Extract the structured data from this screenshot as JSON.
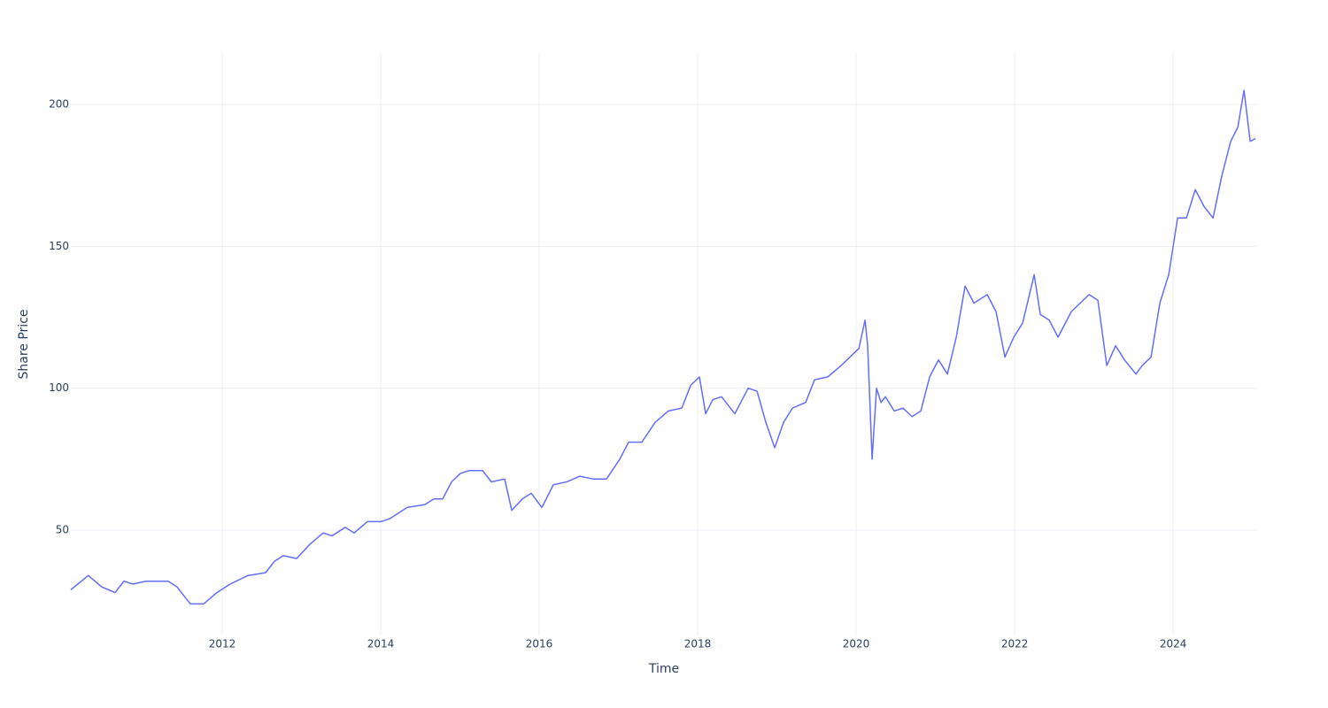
{
  "chart_data": {
    "type": "line",
    "xlabel": "Time",
    "ylabel": "Share Price",
    "xlim": [
      2010.09,
      2025.06
    ],
    "ylim": [
      12.9,
      218.1
    ],
    "xticks": [
      2012,
      2014,
      2016,
      2018,
      2020,
      2022,
      2024
    ],
    "yticks": [
      50,
      100,
      150,
      200
    ],
    "grid": true,
    "series": [
      {
        "color": "#636efa",
        "x": [
          2010.09,
          2010.31,
          2010.48,
          2010.648,
          2010.76,
          2010.872,
          2011.039,
          2011.318,
          2011.43,
          2011.598,
          2011.765,
          2011.933,
          2012.101,
          2012.324,
          2012.547,
          2012.659,
          2012.771,
          2012.939,
          2013.106,
          2013.274,
          2013.385,
          2013.553,
          2013.665,
          2013.832,
          2014.0,
          2014.112,
          2014.335,
          2014.559,
          2014.67,
          2014.782,
          2014.894,
          2015.006,
          2015.117,
          2015.285,
          2015.397,
          2015.564,
          2015.654,
          2015.788,
          2015.899,
          2016.034,
          2016.179,
          2016.346,
          2016.514,
          2016.682,
          2016.849,
          2017.017,
          2017.128,
          2017.296,
          2017.464,
          2017.631,
          2017.799,
          2017.911,
          2018.022,
          2018.101,
          2018.19,
          2018.302,
          2018.469,
          2018.637,
          2018.749,
          2018.86,
          2018.972,
          2019.084,
          2019.196,
          2019.363,
          2019.475,
          2019.642,
          2019.81,
          2019.922,
          2020.034,
          2020.112,
          2020.145,
          2020.201,
          2020.257,
          2020.313,
          2020.369,
          2020.48,
          2020.592,
          2020.704,
          2020.816,
          2020.927,
          2021.039,
          2021.151,
          2021.263,
          2021.374,
          2021.486,
          2021.654,
          2021.765,
          2021.877,
          2021.989,
          2022.101,
          2022.246,
          2022.324,
          2022.436,
          2022.547,
          2022.715,
          2022.827,
          2022.939,
          2023.05,
          2023.162,
          2023.274,
          2023.385,
          2023.531,
          2023.609,
          2023.721,
          2023.832,
          2023.944,
          2024.056,
          2024.168,
          2024.279,
          2024.391,
          2024.503,
          2024.615,
          2024.726,
          2024.816,
          2024.894,
          2024.972,
          2025.039
        ],
        "values": [
          29,
          34,
          30,
          28,
          32,
          31,
          32,
          32,
          30,
          24,
          24,
          28,
          31,
          34,
          35,
          39,
          41,
          40,
          45,
          49,
          48,
          51,
          49,
          53,
          53,
          54,
          58,
          59,
          61,
          61,
          67,
          70,
          71,
          71,
          67,
          68,
          57,
          61,
          63,
          58,
          66,
          67,
          69,
          68,
          68,
          75,
          81,
          81,
          88,
          92,
          93,
          101,
          104,
          91,
          96,
          97,
          91,
          100,
          99,
          88,
          79,
          88,
          93,
          95,
          103,
          104,
          108,
          111,
          114,
          124,
          115,
          75,
          100,
          95,
          97,
          92,
          93,
          90,
          92,
          104,
          110,
          105,
          118,
          136,
          130,
          133,
          127,
          111,
          118,
          123,
          140,
          126,
          124,
          118,
          127,
          130,
          133,
          131,
          108,
          115,
          110,
          105,
          108,
          111,
          130,
          140,
          160,
          160,
          170,
          164,
          160,
          175,
          187,
          192,
          205,
          187,
          188
        ]
      }
    ]
  }
}
